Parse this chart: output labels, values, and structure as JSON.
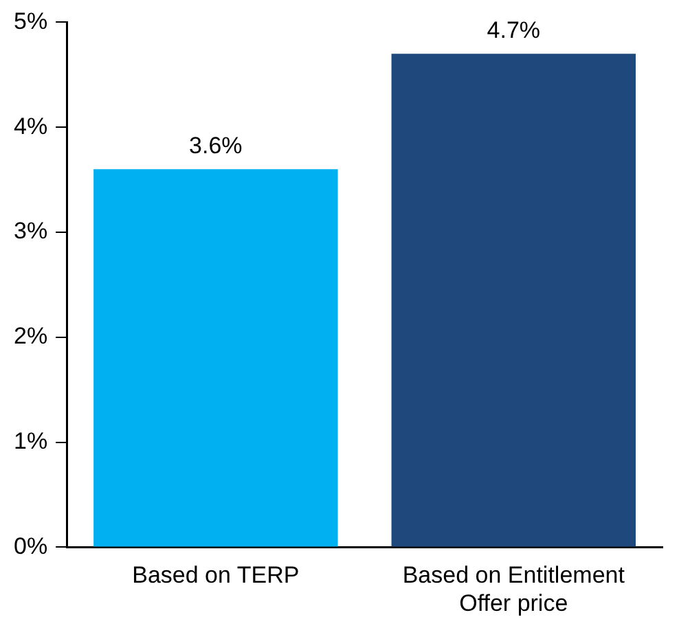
{
  "chart_data": {
    "type": "bar",
    "categories": [
      "Based on TERP",
      "Based on Entitlement Offer price"
    ],
    "values": [
      3.6,
      4.7
    ],
    "colors": [
      "#00b0f0",
      "#1f497d"
    ],
    "value_labels": [
      "3.6%",
      "4.7%"
    ],
    "ylim": [
      0,
      5
    ],
    "yticks": [
      {
        "value": 0,
        "label": "0%"
      },
      {
        "value": 1,
        "label": "1%"
      },
      {
        "value": 2,
        "label": "2%"
      },
      {
        "value": 3,
        "label": "3%"
      },
      {
        "value": 4,
        "label": "4%"
      },
      {
        "value": 5,
        "label": "5%"
      }
    ],
    "grid": false,
    "legend": false
  }
}
